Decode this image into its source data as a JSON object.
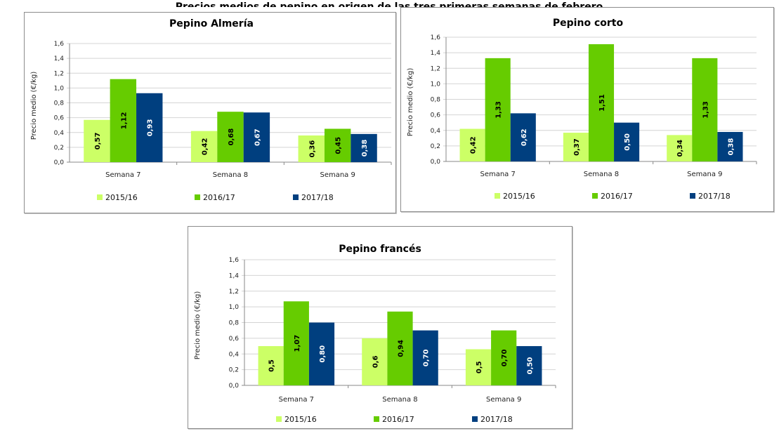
{
  "banner": {
    "text": "Precios medios de pepino en origen de las tres primeras semanas de febrero"
  },
  "colors": {
    "2015/16": "#ccff66",
    "2016/17": "#66cc00",
    "2017/18": "#003f7f"
  },
  "chart_data": [
    {
      "type": "bar",
      "title": "Pepino Almería",
      "ylabel": "Precio medio (€/kg)",
      "xlabel": "",
      "ylim": [
        0,
        1.6
      ],
      "yticks": [
        "0,0",
        "0,2",
        "0,4",
        "0,6",
        "0,8",
        "1,0",
        "1,2",
        "1,4",
        "1,6"
      ],
      "grid": true,
      "legend": "bottom",
      "categories": [
        "Semana 7",
        "Semana 8",
        "Semana 9"
      ],
      "series": [
        {
          "name": "2015/16",
          "values": [
            0.57,
            0.42,
            0.36
          ],
          "labels": [
            "0,57",
            "0,42",
            "0,36"
          ]
        },
        {
          "name": "2016/17",
          "values": [
            1.12,
            0.68,
            0.45
          ],
          "labels": [
            "1,12",
            "0,68",
            "0,45"
          ]
        },
        {
          "name": "2017/18",
          "values": [
            0.93,
            0.67,
            0.38
          ],
          "labels": [
            "0,93",
            "0,67",
            "0,38"
          ]
        }
      ]
    },
    {
      "type": "bar",
      "title": "Pepino corto",
      "ylabel": "Precio medio (€/kg)",
      "xlabel": "",
      "ylim": [
        0,
        1.6
      ],
      "yticks": [
        "0,0",
        "0,2",
        "0,4",
        "0,6",
        "0,8",
        "1,0",
        "1,2",
        "1,4",
        "1,6"
      ],
      "grid": true,
      "legend": "bottom",
      "categories": [
        "Semana 7",
        "Semana 8",
        "Semana 9"
      ],
      "series": [
        {
          "name": "2015/16",
          "values": [
            0.42,
            0.37,
            0.34
          ],
          "labels": [
            "0,42",
            "0,37",
            "0,34"
          ]
        },
        {
          "name": "2016/17",
          "values": [
            1.33,
            1.51,
            1.33
          ],
          "labels": [
            "1,33",
            "1,51",
            "1,33"
          ]
        },
        {
          "name": "2017/18",
          "values": [
            0.62,
            0.5,
            0.38
          ],
          "labels": [
            "0,62",
            "0,50",
            "0,38"
          ]
        }
      ]
    },
    {
      "type": "bar",
      "title": "Pepino francés",
      "ylabel": "Precio medio (€/kg)",
      "xlabel": "",
      "ylim": [
        0,
        1.6
      ],
      "yticks": [
        "0,0",
        "0,2",
        "0,4",
        "0,6",
        "0,8",
        "1,0",
        "1,2",
        "1,4",
        "1,6"
      ],
      "grid": true,
      "legend": "bottom",
      "categories": [
        "Semana 7",
        "Semana 8",
        "Semana 9"
      ],
      "series": [
        {
          "name": "2015/16",
          "values": [
            0.5,
            0.6,
            0.46
          ],
          "labels": [
            "0,5",
            "0,6",
            "0,5"
          ]
        },
        {
          "name": "2016/17",
          "values": [
            1.07,
            0.94,
            0.7
          ],
          "labels": [
            "1,07",
            "0,94",
            "0,70"
          ]
        },
        {
          "name": "2017/18",
          "values": [
            0.8,
            0.7,
            0.5
          ],
          "labels": [
            "0,80",
            "0,70",
            "0,50"
          ]
        }
      ]
    }
  ]
}
